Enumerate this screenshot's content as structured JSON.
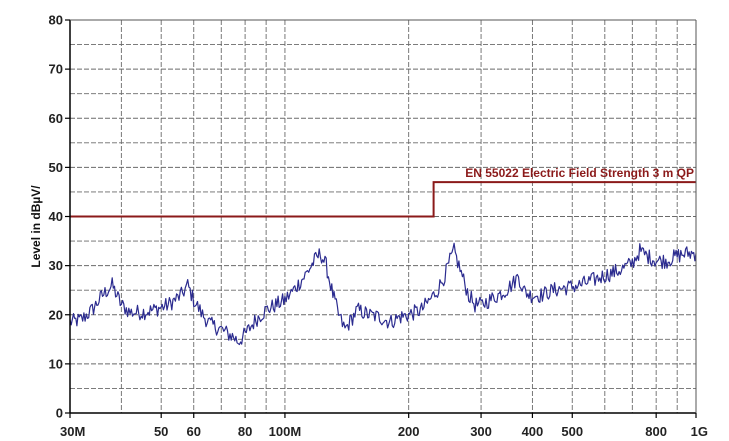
{
  "chart_data": {
    "type": "line",
    "title": "",
    "ylabel": "Level in dBµV/",
    "xlabel": "",
    "x_scale": "log",
    "xlim": [
      30,
      1000
    ],
    "ylim": [
      0,
      80
    ],
    "grid": true,
    "y_ticks": [
      {
        "value": 0,
        "label": "0"
      },
      {
        "value": 10,
        "label": "10"
      },
      {
        "value": 20,
        "label": "20"
      },
      {
        "value": 30,
        "label": "30"
      },
      {
        "value": 40,
        "label": "40"
      },
      {
        "value": 50,
        "label": "50"
      },
      {
        "value": 60,
        "label": "60"
      },
      {
        "value": 70,
        "label": "70"
      },
      {
        "value": 80,
        "label": "80"
      }
    ],
    "x_ticks": [
      {
        "value": 30,
        "label": "30M"
      },
      {
        "value": 50,
        "label": "50"
      },
      {
        "value": 60,
        "label": "60"
      },
      {
        "value": 80,
        "label": "80"
      },
      {
        "value": 100,
        "label": "100M"
      },
      {
        "value": 200,
        "label": "200"
      },
      {
        "value": 300,
        "label": "300"
      },
      {
        "value": 400,
        "label": "400"
      },
      {
        "value": 500,
        "label": "500"
      },
      {
        "value": 800,
        "label": "800"
      },
      {
        "value": 1000,
        "label": "1G"
      }
    ],
    "x_gridlines": [
      40,
      50,
      60,
      70,
      80,
      90,
      100,
      200,
      300,
      400,
      500,
      600,
      700,
      800,
      900
    ],
    "limit_line": {
      "name": "EN 55022 Electric Field Strength 3 m QP",
      "color": "#8b1a1a",
      "points": [
        [
          30,
          40
        ],
        [
          230,
          40
        ],
        [
          230,
          47
        ],
        [
          1000,
          47
        ]
      ]
    },
    "series": [
      {
        "color": "#2b2b8f",
        "points": [
          [
            30,
            18.5
          ],
          [
            32,
            19
          ],
          [
            34,
            21
          ],
          [
            36,
            24
          ],
          [
            38,
            26
          ],
          [
            40,
            22
          ],
          [
            42,
            20.5
          ],
          [
            45,
            20.5
          ],
          [
            48,
            21
          ],
          [
            52,
            22
          ],
          [
            56,
            24
          ],
          [
            58,
            26
          ],
          [
            60,
            23
          ],
          [
            63,
            20
          ],
          [
            66,
            18
          ],
          [
            70,
            17
          ],
          [
            73,
            16
          ],
          [
            75,
            15.5
          ],
          [
            77,
            14.5
          ],
          [
            80,
            16
          ],
          [
            85,
            19
          ],
          [
            90,
            21
          ],
          [
            95,
            22
          ],
          [
            100,
            23
          ],
          [
            105,
            25
          ],
          [
            112,
            28
          ],
          [
            118,
            31
          ],
          [
            122,
            32.5
          ],
          [
            126,
            30
          ],
          [
            130,
            25
          ],
          [
            135,
            20
          ],
          [
            140,
            17
          ],
          [
            145,
            19
          ],
          [
            150,
            21
          ],
          [
            160,
            20
          ],
          [
            170,
            19.5
          ],
          [
            180,
            18.5
          ],
          [
            190,
            19.5
          ],
          [
            200,
            20
          ],
          [
            215,
            21
          ],
          [
            225,
            23
          ],
          [
            235,
            25
          ],
          [
            245,
            28
          ],
          [
            252,
            31
          ],
          [
            258,
            33
          ],
          [
            265,
            30
          ],
          [
            272,
            27
          ],
          [
            280,
            24
          ],
          [
            290,
            22
          ],
          [
            300,
            22
          ],
          [
            315,
            23
          ],
          [
            330,
            24
          ],
          [
            345,
            25
          ],
          [
            360,
            26.5
          ],
          [
            370,
            28
          ],
          [
            380,
            25
          ],
          [
            395,
            24
          ],
          [
            420,
            24
          ],
          [
            450,
            25
          ],
          [
            480,
            25.5
          ],
          [
            520,
            26
          ],
          [
            560,
            27
          ],
          [
            600,
            28
          ],
          [
            650,
            29
          ],
          [
            700,
            30.5
          ],
          [
            730,
            33
          ],
          [
            760,
            32
          ],
          [
            800,
            31
          ],
          [
            850,
            31
          ],
          [
            900,
            32
          ],
          [
            950,
            32.5
          ],
          [
            1000,
            32.5
          ]
        ]
      }
    ]
  }
}
